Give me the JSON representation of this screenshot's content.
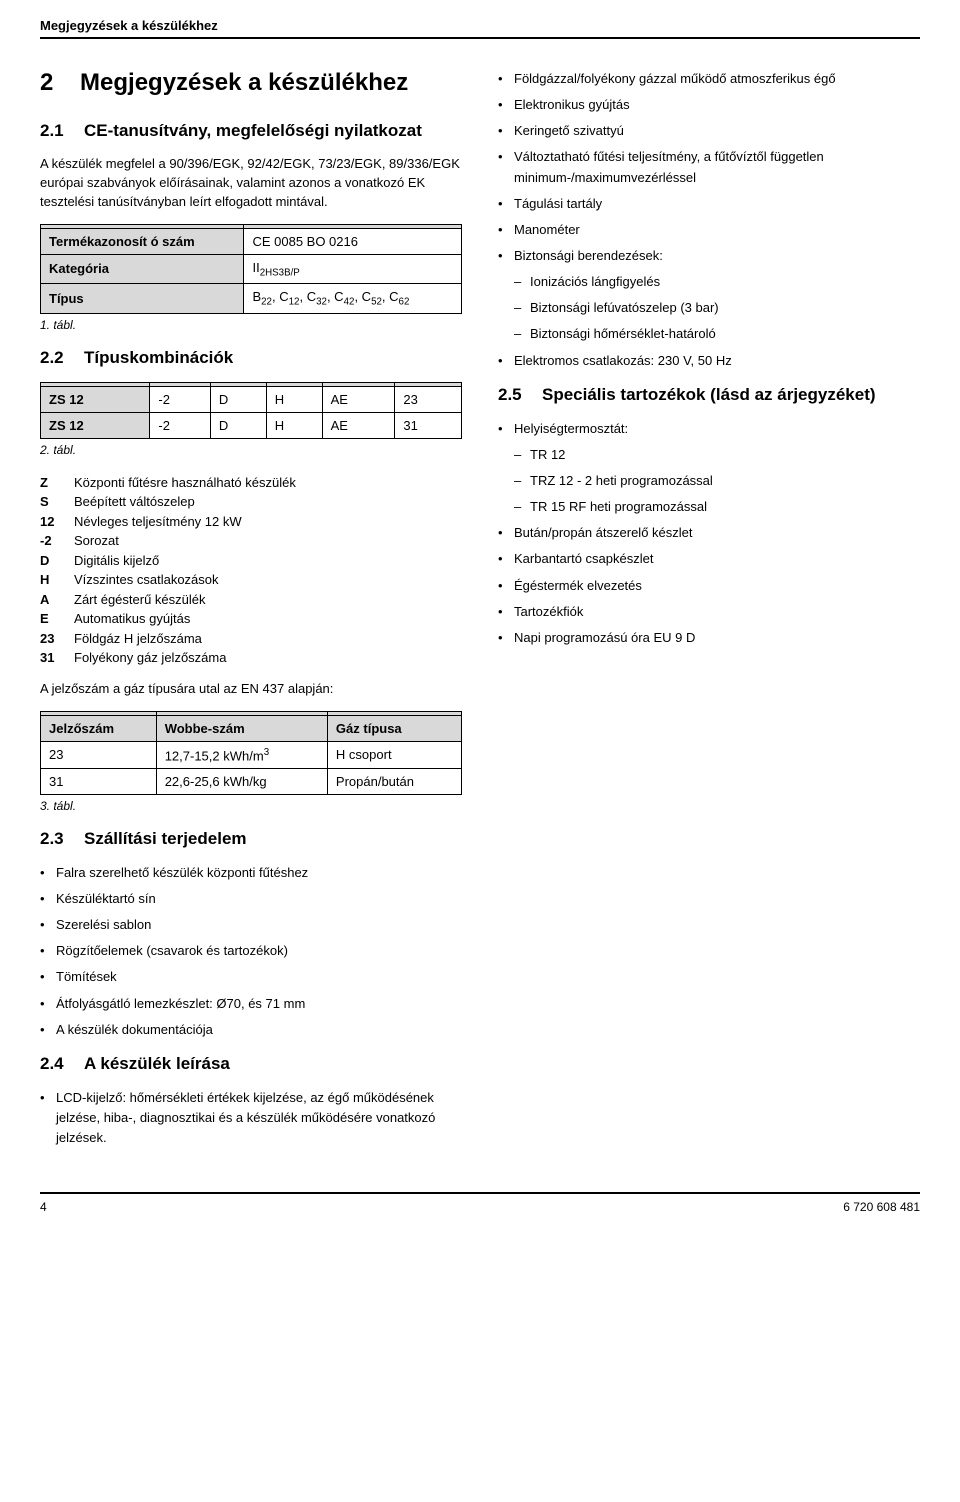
{
  "header": {
    "title": "Megjegyzések a készülékhez"
  },
  "main": {
    "h1_num": "2",
    "h1_txt": "Megjegyzések a készülékhez",
    "sec21": {
      "num": "2.1",
      "title": "CE-tanusítvány, megfelelőségi nyilatkozat",
      "para": "A készülék megfelel a 90/396/EGK, 92/42/EGK, 73/23/EGK, 89/336/EGK európai szabványok előírásainak, valamint azonos a vonatkozó EK tesztelési tanúsítványban leírt elfogadott mintával."
    },
    "table1": {
      "rows": [
        {
          "k": "Termékazonosít ó szám",
          "v": "CE 0085 BO 0216"
        },
        {
          "k": "Kategória",
          "v_html": "II<sub>2HS3B/P</sub>"
        },
        {
          "k": "Típus",
          "v_html": "B<sub>22</sub>, C<sub>12</sub>, C<sub>32</sub>, C<sub>42</sub>, C<sub>52</sub>, C<sub>62</sub>"
        }
      ],
      "caption": "1. tábl."
    },
    "sec22": {
      "num": "2.2",
      "title": "Típuskombinációk"
    },
    "table2": {
      "rows": [
        [
          "ZS 12",
          "-2",
          "D",
          "H",
          "AE",
          "23"
        ],
        [
          "ZS 12",
          "-2",
          "D",
          "H",
          "AE",
          "31"
        ]
      ],
      "caption": "2. tábl."
    },
    "defs": [
      {
        "k": "Z",
        "v": "Központi fűtésre használható készülék"
      },
      {
        "k": "S",
        "v": "Beépített váltószelep"
      },
      {
        "k": "12",
        "v": "Névleges teljesítmény 12 kW"
      },
      {
        "k": "-2",
        "v": "Sorozat"
      },
      {
        "k": "D",
        "v": "Digitális kijelző"
      },
      {
        "k": "H",
        "v": "Vízszintes csatlakozások"
      },
      {
        "k": "A",
        "v": "Zárt égésterű készülék"
      },
      {
        "k": "E",
        "v": "Automatikus gyújtás"
      },
      {
        "k": "23",
        "v": "Földgáz H jelzőszáma"
      },
      {
        "k": "31",
        "v": "Folyékony gáz jelzőszáma"
      }
    ],
    "linenote": "A jelzőszám a gáz típusára utal az EN 437 alapján:",
    "table3": {
      "header": [
        "Jelzőszám",
        "Wobbe-szám",
        "Gáz típusa"
      ],
      "rows": [
        [
          "23",
          "12,7-15,2 kWh/m<sup>3</sup>",
          "H csoport"
        ],
        [
          "31",
          "22,6-25,6 kWh/kg",
          "Propán/bután"
        ]
      ],
      "caption": "3. tábl."
    },
    "sec23": {
      "num": "2.3",
      "title": "Szállítási terjedelem",
      "items": [
        "Falra szerelhető készülék központi fűtéshez",
        "Készüléktartó sín",
        "Szerelési sablon",
        "Rögzítőelemek (csavarok és tartozékok)",
        "Tömítések",
        "Átfolyásgátló lemezkészlet: Ø70, és 71 mm",
        "A készülék dokumentációja"
      ]
    },
    "sec24": {
      "num": "2.4",
      "title": "A készülék leírása",
      "items_left": [
        "LCD-kijelző: hőmérsékleti értékek kijelzése, az égő működésének jelzése, hiba-, diagnosztikai és a készülék működésére vonatkozó jelzések."
      ],
      "items_right": [
        "Földgázzal/folyékony gázzal működő atmoszferikus égő",
        "Elektronikus gyújtás",
        "Keringető szivattyú",
        "Változtatható fűtési teljesítmény, a fűtővíztől független minimum-/maximumvezérléssel",
        "Tágulási tartály",
        "Manométer"
      ],
      "biztonsagi": {
        "label": "Biztonsági berendezések:",
        "sub": [
          "Ionizációs lángfigyelés",
          "Biztonsági lefúvatószelep (3 bar)",
          "Biztonsági hőmérséklet-határoló"
        ]
      },
      "elek": "Elektromos csatlakozás: 230 V, 50 Hz"
    },
    "sec25": {
      "num": "2.5",
      "title": "Speciális tartozékok (lásd az árjegyzéket)",
      "thermo": {
        "label": "Helyiségtermosztát:",
        "sub": [
          "TR 12",
          "TRZ 12 - 2 heti programozással",
          "TR 15 RF heti programozással"
        ]
      },
      "rest": [
        "Bután/propán átszerelő készlet",
        "Karbantartó csapkészlet",
        "Égéstermék elvezetés",
        "Tartozékfiók",
        "Napi programozású óra EU 9 D"
      ]
    }
  },
  "footer": {
    "page": "4",
    "docnum": "6 720 608 481"
  }
}
